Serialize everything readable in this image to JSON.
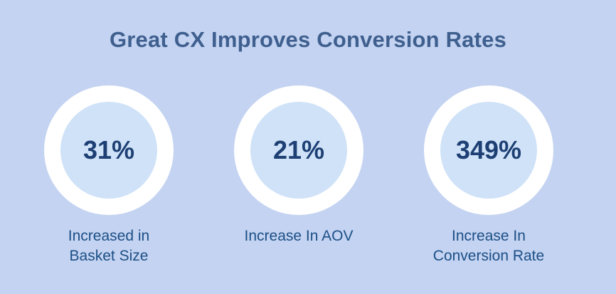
{
  "title": "Great CX Improves Conversion Rates",
  "stats": [
    {
      "value": "31%",
      "label_line1": "Increased in",
      "label_line2": "Basket Size"
    },
    {
      "value": "21%",
      "label_line1": "Increase In AOV",
      "label_line2": ""
    },
    {
      "value": "349%",
      "label_line1": "Increase In",
      "label_line2": "Conversion Rate"
    }
  ],
  "colors": {
    "background": "#c3d3f1",
    "ring": "#ffffff",
    "inner_circle": "#cfe2f8",
    "title": "#3f5f8f",
    "value": "#1d3f73",
    "label": "#1d4f86"
  }
}
